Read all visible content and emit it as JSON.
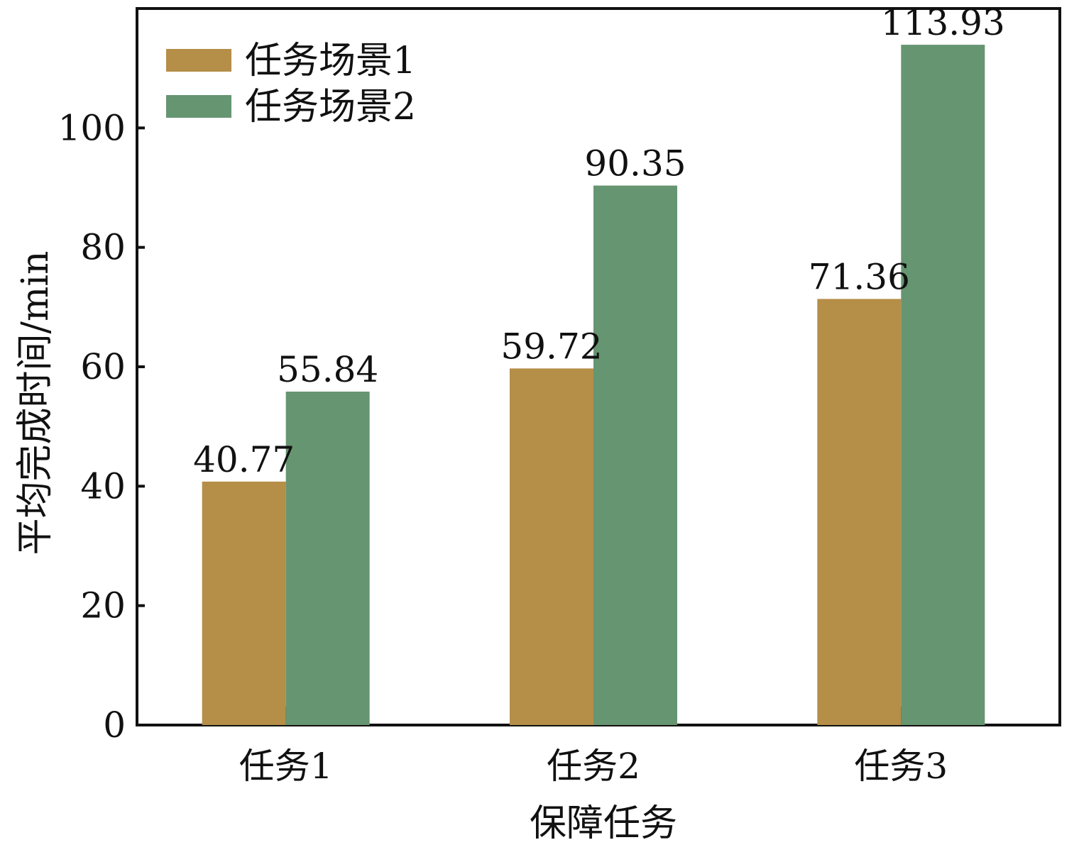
{
  "chart_data": {
    "type": "bar",
    "title": "",
    "xlabel": "保障任务",
    "ylabel": "平均完成时间/min",
    "categories": [
      "任务1",
      "任务2",
      "任务3"
    ],
    "series": [
      {
        "name": "任务场景1",
        "color": "#b58e48",
        "values": [
          40.77,
          59.72,
          71.36
        ],
        "labels": [
          "40.77",
          "59.72",
          "71.36"
        ]
      },
      {
        "name": "任务场景2",
        "color": "#669571",
        "values": [
          55.84,
          90.35,
          113.93
        ],
        "labels": [
          "55.84",
          "90.35",
          "113.93"
        ]
      }
    ],
    "ylim": [
      0,
      120
    ],
    "yticks": [
      0,
      20,
      40,
      60,
      80,
      100
    ],
    "ytick_labels": [
      "0",
      "20",
      "40",
      "60",
      "80",
      "100"
    ],
    "grid": false,
    "legend_position": "top-left"
  }
}
